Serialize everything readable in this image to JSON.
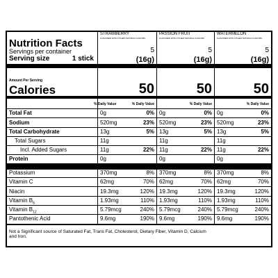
{
  "title": "Nutrition Facts",
  "servings_label": "Servings per container",
  "serving_size_label": "Serving size",
  "serving_size": "1 stick",
  "amount_per_serving": "Amount Per Serving",
  "calories_label": "Calories",
  "daily_value_header": "% Daily Value",
  "nutrients": [
    {
      "label": "Total Fat",
      "bold": true,
      "indent": 0
    },
    {
      "label": "Sodium",
      "bold": true,
      "indent": 0
    },
    {
      "label": "Total Carbohydrate",
      "bold": true,
      "indent": 0
    },
    {
      "label": "Total Sugars",
      "bold": false,
      "indent": 1
    },
    {
      "label": "Incl. Added Sugars",
      "bold": false,
      "indent": 2
    },
    {
      "label": "Protein",
      "bold": true,
      "indent": 0
    },
    {
      "label": "Potassium",
      "bold": false,
      "indent": 0
    },
    {
      "label": "Vitamin C",
      "bold": false,
      "indent": 0
    },
    {
      "label": "Niacin",
      "bold": false,
      "indent": 0
    },
    {
      "label": "Vitamin B",
      "sub": "6",
      "bold": false,
      "indent": 0
    },
    {
      "label": "Vitamin B",
      "sub": "12",
      "bold": false,
      "indent": 0
    },
    {
      "label": "Pantothenic Acid",
      "bold": false,
      "indent": 0
    }
  ],
  "products": [
    {
      "name": "STRAWBERRY",
      "subtitle": "FLAVORED WITH OTHER NATURAL FLAVORS",
      "servings": "5",
      "serving_weight": "(16g)",
      "calories": "50",
      "values": [
        {
          "amount": "0g",
          "dv": "0%"
        },
        {
          "amount": "520mg",
          "dv": "23%"
        },
        {
          "amount": "13g",
          "dv": "5%"
        },
        {
          "amount": "11g"
        },
        {
          "amount": "11g",
          "dv": "22%"
        },
        {
          "amount": "0g"
        },
        {
          "amount": "370mg",
          "dv": "8%"
        },
        {
          "amount": "62mg",
          "dv": "70%"
        },
        {
          "amount": "19.3mg",
          "dv": "120%"
        },
        {
          "amount": "1.93mg",
          "dv": "110%"
        },
        {
          "amount": "5.79mcg",
          "dv": "240%"
        },
        {
          "amount": "9.6mg",
          "dv": "190%"
        }
      ]
    },
    {
      "name": "PASSION FRUIT",
      "subtitle": "FLAVORED WITH OTHER NATURAL FLAVORS",
      "servings": "5",
      "serving_weight": "(16g)",
      "calories": "50",
      "values": [
        {
          "amount": "0g",
          "dv": "0%"
        },
        {
          "amount": "520mg",
          "dv": "23%"
        },
        {
          "amount": "13g",
          "dv": "5%"
        },
        {
          "amount": "11g"
        },
        {
          "amount": "11g",
          "dv": "22%"
        },
        {
          "amount": "0g"
        },
        {
          "amount": "370mg",
          "dv": "8%"
        },
        {
          "amount": "62mg",
          "dv": "70%"
        },
        {
          "amount": "19.3mg",
          "dv": "120%"
        },
        {
          "amount": "1.93mg",
          "dv": "110%"
        },
        {
          "amount": "5.79mcg",
          "dv": "240%"
        },
        {
          "amount": "9.6mg",
          "dv": "190%"
        }
      ]
    },
    {
      "name": "WATERMELON",
      "subtitle": "FLAVORED WITH OTHER NATURAL FLAVORS",
      "servings": "5",
      "serving_weight": "(16g)",
      "calories": "50",
      "values": [
        {
          "amount": "0g",
          "dv": "0%"
        },
        {
          "amount": "520mg",
          "dv": "23%"
        },
        {
          "amount": "13g",
          "dv": "5%"
        },
        {
          "amount": "11g"
        },
        {
          "amount": "11g",
          "dv": "22%"
        },
        {
          "amount": "0g"
        },
        {
          "amount": "370mg",
          "dv": "8%"
        },
        {
          "amount": "62mg",
          "dv": "70%"
        },
        {
          "amount": "19.3mg",
          "dv": "120%"
        },
        {
          "amount": "1.93mg",
          "dv": "110%"
        },
        {
          "amount": "5.79mcg",
          "dv": "240%"
        },
        {
          "amount": "9.6mg",
          "dv": "190%"
        }
      ]
    }
  ],
  "footnote": "Not a Significant source of Saturated Fat, Trans Fat, Cholesterol, Dietary Fiber, Vitamin D, Calcium and Iron."
}
